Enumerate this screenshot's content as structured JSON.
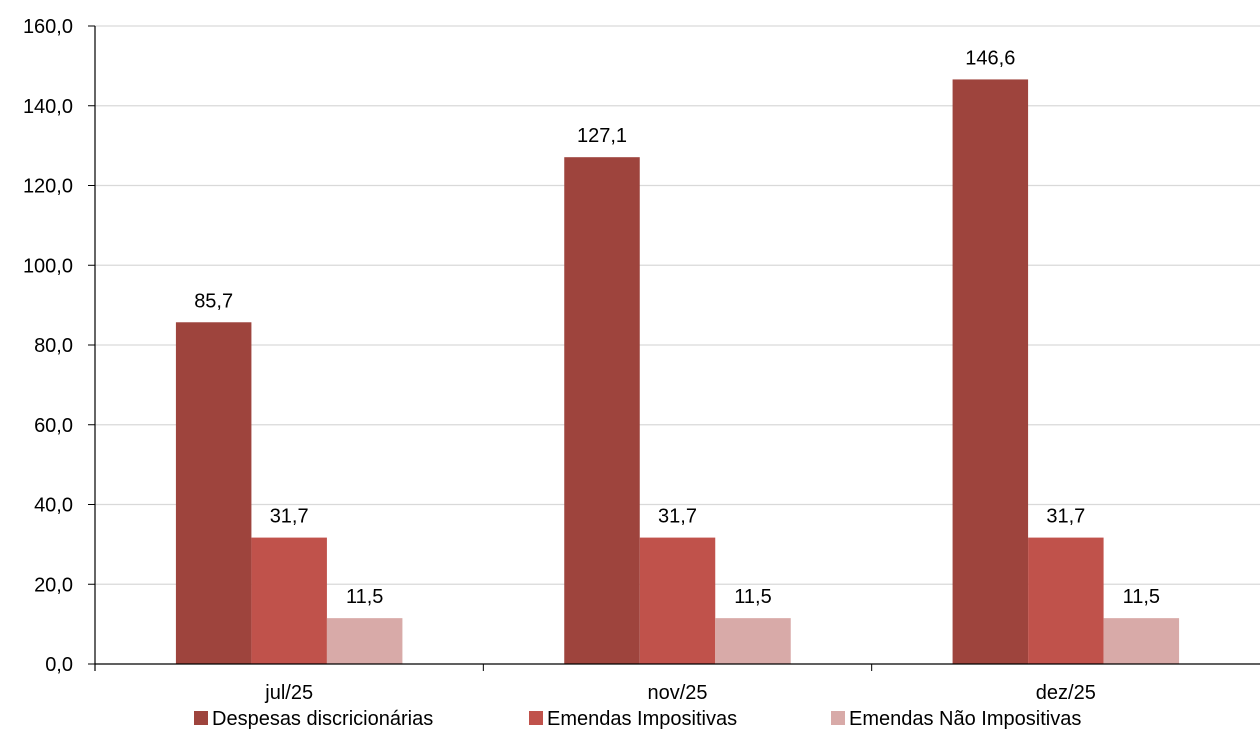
{
  "chart_data": {
    "type": "bar",
    "title": "",
    "xlabel": "",
    "ylabel": "",
    "categories": [
      "jul/25",
      "nov/25",
      "dez/25"
    ],
    "series": [
      {
        "name": "Despesas discricionárias",
        "values": [
          85.7,
          127.1,
          146.6
        ],
        "labels": [
          "85,7",
          "127,1",
          "146,6"
        ],
        "color": "#9e443d"
      },
      {
        "name": "Emendas Impositivas",
        "values": [
          31.7,
          31.7,
          31.7
        ],
        "labels": [
          "31,7",
          "31,7",
          "31,7"
        ],
        "color": "#c0524b"
      },
      {
        "name": "Emendas Não Impositivas",
        "values": [
          11.5,
          11.5,
          11.5
        ],
        "labels": [
          "11,5",
          "11,5",
          "11,5"
        ],
        "color": "#d8aaa8"
      }
    ],
    "ylim": [
      0,
      160
    ],
    "yticks": [
      0,
      20,
      40,
      60,
      80,
      100,
      120,
      140,
      160
    ],
    "ytick_labels": [
      "0,0",
      "20,0",
      "40,0",
      "60,0",
      "80,0",
      "100,0",
      "120,0",
      "140,0",
      "160,0"
    ],
    "grid": true,
    "legend_position": "bottom"
  }
}
